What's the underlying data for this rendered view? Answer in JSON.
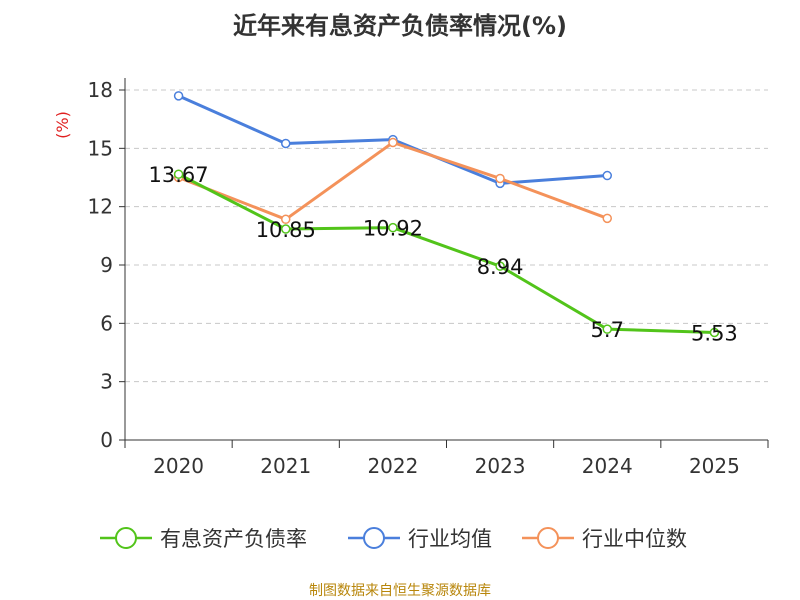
{
  "chart_data": {
    "type": "line",
    "title": "近年来有息资产负债率情况(%)",
    "ylabel": "(%)",
    "xlabel": "",
    "categories": [
      "2020",
      "2021",
      "2022",
      "2023",
      "2024",
      "2025"
    ],
    "ylim": [
      0,
      18
    ],
    "yticks": [
      "0",
      "3",
      "6",
      "9",
      "12",
      "15",
      "18"
    ],
    "grid": true,
    "legend": "bottom",
    "series": [
      {
        "name": "有息资产负债率",
        "color": "#52c41a",
        "values": [
          13.67,
          10.85,
          10.92,
          8.94,
          5.7,
          5.53
        ],
        "labels": [
          "13.67",
          "10.85",
          "10.92",
          "8.94",
          "5.7",
          "5.53"
        ]
      },
      {
        "name": "行业均值",
        "color": "#4a7fdc",
        "values": [
          17.7,
          15.25,
          15.45,
          13.2,
          13.6,
          null
        ]
      },
      {
        "name": "行业中位数",
        "color": "#f4925a",
        "values": [
          13.5,
          11.35,
          15.3,
          13.45,
          11.4,
          null
        ]
      }
    ]
  },
  "source": "制图数据来自恒生聚源数据库"
}
